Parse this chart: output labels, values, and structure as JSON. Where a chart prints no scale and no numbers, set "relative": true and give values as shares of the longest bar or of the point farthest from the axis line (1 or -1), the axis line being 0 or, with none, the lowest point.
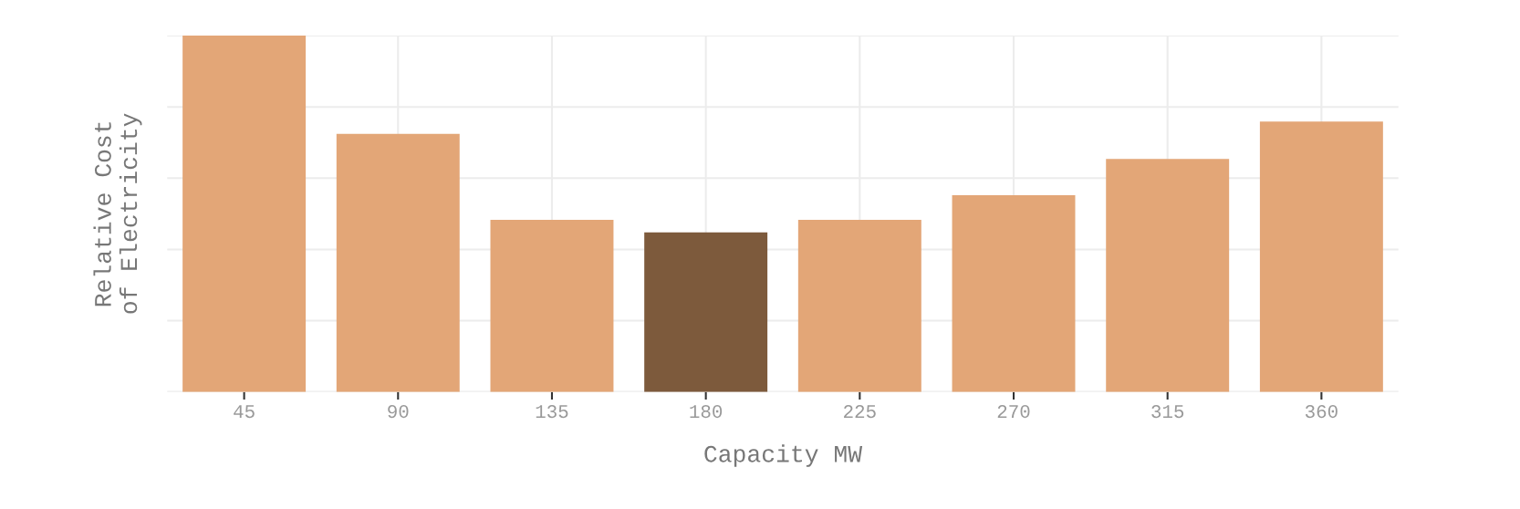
{
  "chart_data": {
    "type": "bar",
    "relative": true,
    "xlabel": "Capacity MW",
    "ylabel": "Relative Cost\nof Electricity",
    "categories": [
      "45",
      "90",
      "135",
      "180",
      "225",
      "270",
      "315",
      "360"
    ],
    "values": [
      1,
      0.724,
      0.483,
      0.448,
      0.483,
      0.552,
      0.654,
      0.759
    ],
    "colors": [
      "#e3a677",
      "#e3a677",
      "#e3a677",
      "#7d5a3c",
      "#e3a677",
      "#e3a677",
      "#e3a677",
      "#e3a677"
    ],
    "grid": true,
    "tick_labels": "x"
  }
}
